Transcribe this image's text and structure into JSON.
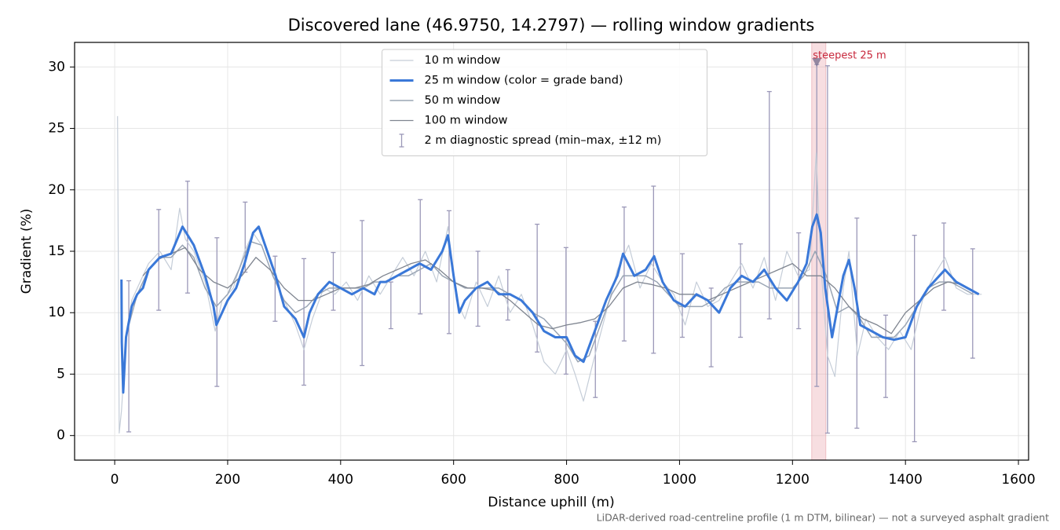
{
  "chart_data": {
    "type": "line",
    "title": "Discovered lane (46.9750, 14.2797) — rolling window gradients",
    "xlabel": "Distance uphill (m)",
    "ylabel": "Gradient (%)",
    "footnote": "LiDAR-derived road-centreline profile (1 m DTM, bilinear) — not a surveyed asphalt gradient",
    "xlim": [
      -71,
      1618
    ],
    "ylim": [
      -2,
      32
    ],
    "xticks": [
      0,
      200,
      400,
      600,
      800,
      1000,
      1200,
      1400,
      1600
    ],
    "yticks": [
      0,
      5,
      10,
      15,
      20,
      25,
      30
    ],
    "grid": true,
    "legend": "upper center",
    "series": [
      {
        "name": "10 m window",
        "color": "#c5cdd8",
        "width": 1.2,
        "x": [
          5,
          8,
          12,
          20,
          30,
          45,
          60,
          80,
          100,
          115,
          125,
          140,
          160,
          178,
          190,
          210,
          230,
          245,
          260,
          280,
          300,
          320,
          335,
          350,
          370,
          390,
          410,
          430,
          450,
          470,
          490,
          510,
          530,
          550,
          570,
          590,
          605,
          620,
          640,
          660,
          680,
          700,
          720,
          740,
          760,
          780,
          800,
          815,
          830,
          850,
          870,
          890,
          910,
          930,
          950,
          970,
          990,
          1010,
          1030,
          1050,
          1070,
          1090,
          1110,
          1130,
          1150,
          1170,
          1190,
          1210,
          1230,
          1242,
          1250,
          1262,
          1275,
          1290,
          1300,
          1315,
          1330,
          1350,
          1370,
          1390,
          1410,
          1430,
          1450,
          1470,
          1490,
          1510,
          1535
        ],
        "values": [
          26,
          0.2,
          2,
          8,
          11,
          12.5,
          14,
          15,
          13.5,
          18.5,
          16,
          15,
          12.5,
          8.5,
          11,
          12,
          15,
          16.5,
          15.5,
          13,
          11,
          9,
          7,
          9.5,
          12,
          11.5,
          12.5,
          11,
          13,
          11.5,
          13,
          14.5,
          13,
          15,
          12.5,
          17,
          11,
          9.5,
          12.5,
          10.5,
          13,
          10,
          11.5,
          9,
          6,
          5,
          7,
          5,
          2.8,
          6.5,
          10,
          13.5,
          15.5,
          12,
          14,
          12.5,
          11.5,
          9,
          12.5,
          10.5,
          11,
          12.5,
          14,
          12,
          14.5,
          11,
          15,
          13,
          13.5,
          23,
          14,
          6.5,
          4.8,
          12,
          15,
          6.5,
          9.5,
          8,
          7,
          8.5,
          7,
          11,
          13,
          14.5,
          12,
          11.5,
          11.5
        ]
      },
      {
        "name": "25 m window (color = grade band)",
        "color": "#3a78d8",
        "width": 3,
        "x": [
          12,
          12.5,
          15,
          20,
          30,
          40,
          50,
          60,
          80,
          100,
          120,
          140,
          160,
          175,
          180,
          190,
          200,
          215,
          230,
          245,
          255,
          270,
          285,
          300,
          320,
          335,
          345,
          360,
          380,
          400,
          420,
          440,
          460,
          470,
          480,
          500,
          520,
          540,
          560,
          580,
          590,
          600,
          610,
          620,
          640,
          660,
          680,
          700,
          720,
          740,
          760,
          780,
          800,
          815,
          830,
          850,
          870,
          890,
          900,
          920,
          940,
          955,
          970,
          990,
          1010,
          1030,
          1050,
          1070,
          1090,
          1110,
          1130,
          1150,
          1170,
          1190,
          1210,
          1225,
          1235,
          1243,
          1250,
          1258,
          1270,
          1280,
          1290,
          1300,
          1310,
          1320,
          1340,
          1360,
          1380,
          1400,
          1420,
          1440,
          1460,
          1470,
          1490,
          1510,
          1530
        ],
        "values": [
          12.7,
          7.6,
          3.5,
          8,
          10.5,
          11.5,
          12,
          13.5,
          14.5,
          14.8,
          17,
          15.5,
          13,
          10.5,
          9,
          10,
          11,
          12,
          14,
          16.5,
          17,
          15,
          13,
          10.5,
          9.5,
          8,
          10,
          11.5,
          12.5,
          12,
          11.5,
          12,
          11.5,
          12.5,
          12.5,
          13,
          13.5,
          14,
          13.5,
          15,
          16.3,
          13,
          10,
          11,
          12,
          12.5,
          11.5,
          11.5,
          11,
          10,
          8.5,
          8,
          8,
          6.5,
          6,
          8.5,
          11,
          13,
          14.8,
          13,
          13.5,
          14.6,
          12.5,
          11,
          10.5,
          11.5,
          11,
          10,
          12,
          13,
          12.5,
          13.5,
          12,
          11,
          12.5,
          14,
          17,
          18,
          16.5,
          12,
          8,
          10.5,
          13,
          14.3,
          12,
          9,
          8.5,
          8,
          7.8,
          8,
          10.5,
          12,
          13,
          13.5,
          12.5,
          12,
          11.5
        ]
      },
      {
        "name": "50 m window",
        "color": "#9aa5b4",
        "width": 1.5,
        "x": [
          25,
          40,
          60,
          80,
          100,
          120,
          140,
          160,
          180,
          200,
          220,
          240,
          260,
          280,
          300,
          320,
          340,
          360,
          380,
          400,
          420,
          440,
          460,
          480,
          500,
          520,
          540,
          560,
          580,
          600,
          620,
          640,
          660,
          680,
          700,
          720,
          740,
          760,
          780,
          800,
          820,
          840,
          860,
          880,
          900,
          920,
          940,
          960,
          980,
          1000,
          1020,
          1040,
          1060,
          1080,
          1100,
          1120,
          1140,
          1160,
          1180,
          1200,
          1220,
          1240,
          1260,
          1280,
          1300,
          1320,
          1340,
          1360,
          1380,
          1400,
          1420,
          1440,
          1460,
          1480,
          1500,
          1520
        ],
        "values": [
          9,
          11.5,
          13.5,
          14.5,
          14.5,
          15.5,
          14.5,
          12,
          10.5,
          11.5,
          13.5,
          15.8,
          15.5,
          13,
          11,
          10,
          10.5,
          11.5,
          12,
          12,
          12,
          12,
          12.5,
          12.5,
          13,
          13,
          13.5,
          14,
          13,
          12.5,
          12,
          12,
          12,
          12,
          11.5,
          11,
          10,
          9.5,
          8.5,
          7.5,
          6,
          6.5,
          9,
          11.5,
          13,
          13,
          13,
          12.5,
          11.5,
          10.5,
          10.5,
          10.5,
          11,
          12,
          12.5,
          12.5,
          12.5,
          12,
          12,
          12,
          13,
          15,
          13,
          10,
          10.5,
          9.5,
          8,
          8,
          8,
          9,
          10.5,
          12,
          12.5,
          12.5,
          12,
          11.5
        ]
      },
      {
        "name": "100 m window",
        "color": "#7f8590",
        "width": 1.3,
        "x": [
          50,
          75,
          100,
          125,
          150,
          175,
          200,
          225,
          250,
          275,
          300,
          325,
          350,
          375,
          400,
          425,
          450,
          475,
          500,
          525,
          550,
          575,
          600,
          625,
          650,
          675,
          700,
          725,
          750,
          775,
          800,
          825,
          850,
          875,
          900,
          925,
          950,
          975,
          1000,
          1025,
          1050,
          1075,
          1100,
          1125,
          1150,
          1175,
          1200,
          1225,
          1250,
          1275,
          1300,
          1325,
          1350,
          1375,
          1400,
          1425,
          1450,
          1475,
          1500
        ],
        "values": [
          13,
          14.3,
          14.8,
          15.3,
          13.5,
          12.5,
          12,
          13,
          14.5,
          13.5,
          12,
          11,
          11,
          11.5,
          12,
          12,
          12.3,
          13,
          13.5,
          14,
          14.3,
          13.5,
          12.5,
          12,
          12,
          11.8,
          11,
          10,
          9,
          8.7,
          9,
          9.2,
          9.5,
          10.5,
          12,
          12.5,
          12.3,
          12,
          11.5,
          11.5,
          11,
          11.5,
          12,
          12.5,
          13,
          13.5,
          14,
          13,
          13,
          12,
          10.5,
          9.5,
          9,
          8.3,
          10,
          11,
          12,
          12.5,
          12.3
        ]
      }
    ],
    "errorbars": {
      "name": "2 m diagnostic spread (min–max, ±12 m)",
      "color": "#9b98b8",
      "x": [
        25,
        78,
        129,
        181,
        231,
        284,
        335,
        387,
        438,
        489,
        541,
        592,
        643,
        696,
        748,
        799,
        851,
        902,
        954,
        1005,
        1056,
        1108,
        1159,
        1211,
        1243,
        1262,
        1314,
        1365,
        1416,
        1468,
        1519
      ],
      "low": [
        0.3,
        10.2,
        11.6,
        4.0,
        13.3,
        9.3,
        4.1,
        10.2,
        5.7,
        8.7,
        9.9,
        8.3,
        8.9,
        9.4,
        6.8,
        5.0,
        3.1,
        7.7,
        6.7,
        8.0,
        5.6,
        8.0,
        9.5,
        8.7,
        4.0,
        0.2,
        0.6,
        3.1,
        -0.5,
        10.2,
        6.3
      ],
      "high": [
        12.6,
        18.4,
        20.7,
        16.1,
        19.0,
        14.6,
        14.4,
        14.9,
        17.5,
        12.5,
        19.2,
        18.3,
        15.0,
        13.5,
        17.2,
        15.3,
        9.3,
        18.6,
        20.3,
        14.8,
        12.0,
        15.6,
        28.0,
        16.5,
        30.2,
        30.1,
        17.7,
        9.8,
        16.3,
        17.3,
        15.2
      ]
    },
    "highlight": {
      "label": "steepest 25 m",
      "color": "#e8a0a8",
      "x_start": 1234,
      "x_end": 1259,
      "marker_x": 1243,
      "marker_y": 30.4
    }
  }
}
